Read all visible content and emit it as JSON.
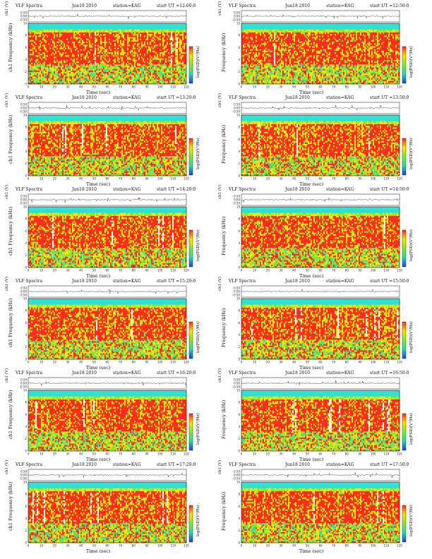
{
  "chart_data": [
    {
      "type": "heatmap",
      "title": "VLF Spectra",
      "date": "Jun18 2010",
      "station": "station=KAG",
      "start": "start UT =12:00:0",
      "ylabel_top": "ch1 (V)",
      "ylabel": "ch1 Frequency (kHz)",
      "xlabel": "Time (sec)",
      "colorbar_label": "log(PSD)(V²/Hz)",
      "xlim": [
        0,
        120
      ],
      "ylim": [
        0,
        10
      ],
      "xticks": [
        0,
        10,
        20,
        30,
        40,
        50,
        60,
        70,
        80,
        90,
        100,
        110,
        120
      ],
      "yticks": [
        0,
        2,
        4,
        6,
        8,
        10
      ],
      "top_yticks": [
        "0.50",
        "0.00",
        "-0.50"
      ]
    },
    {
      "type": "heatmap",
      "title": "VLF Spectra",
      "date": "Jun18 2010",
      "station": "station=KAG",
      "start": "start UT =12:50:0",
      "ylabel_top": "ch1 (V)",
      "ylabel": "Frequency (kHz)",
      "xlabel": "Time (sec)",
      "colorbar_label": "log(PSD)(V²/Hz)",
      "xlim": [
        0,
        120
      ],
      "ylim": [
        0,
        10
      ],
      "xticks": [
        0,
        10,
        20,
        30,
        40,
        50,
        60,
        70,
        80,
        90,
        100,
        110,
        120
      ],
      "yticks": [
        0,
        2,
        4,
        6,
        8,
        10
      ],
      "top_yticks": [
        "0.50",
        "0.00",
        "-0.50"
      ]
    },
    {
      "type": "heatmap",
      "title": "VLF Spectra",
      "date": "Jun18 2010",
      "station": "station=KAG",
      "start": "start UT =13:20:0",
      "ylabel_top": "ch1 (V)",
      "ylabel": "ch1 Frequency (kHz)",
      "xlabel": "Time (sec)",
      "colorbar_label": "log(PSD)(V²/Hz)",
      "xlim": [
        0,
        120
      ],
      "ylim": [
        0,
        10
      ],
      "xticks": [
        0,
        10,
        20,
        30,
        40,
        50,
        60,
        70,
        80,
        90,
        100,
        110,
        120
      ],
      "yticks": [
        0,
        2,
        4,
        6,
        8,
        10
      ],
      "top_yticks": [
        "0.50",
        "0.00",
        "-0.50"
      ]
    },
    {
      "type": "heatmap",
      "title": "VLF Spectra",
      "date": "Jun18 2010",
      "station": "station=KAG",
      "start": "start UT =13:50:0",
      "ylabel_top": "ch1 (V)",
      "ylabel": "Frequency (kHz)",
      "xlabel": "Time (sec)",
      "colorbar_label": "log(PSD)(V²/Hz)",
      "xlim": [
        0,
        120
      ],
      "ylim": [
        0,
        10
      ],
      "xticks": [
        0,
        10,
        20,
        30,
        40,
        50,
        60,
        70,
        80,
        90,
        100,
        110,
        120
      ],
      "yticks": [
        0,
        2,
        4,
        6,
        8,
        10
      ],
      "top_yticks": [
        "0.50",
        "0.00",
        "-0.50"
      ]
    },
    {
      "type": "heatmap",
      "title": "VLF Spectra",
      "date": "Jun18 2010",
      "station": "station=KAG",
      "start": "start UT =14:20:0",
      "ylabel_top": "ch1 (V)",
      "ylabel": "ch1 Frequency (kHz)",
      "xlabel": "Time (sec)",
      "colorbar_label": "log(PSD)(V²/Hz)",
      "xlim": [
        0,
        120
      ],
      "ylim": [
        0,
        10
      ],
      "xticks": [
        0,
        10,
        20,
        30,
        40,
        50,
        60,
        70,
        80,
        90,
        100,
        110,
        120
      ],
      "yticks": [
        0,
        2,
        4,
        6,
        8,
        10
      ],
      "top_yticks": [
        "0.50",
        "0.00",
        "-0.50"
      ]
    },
    {
      "type": "heatmap",
      "title": "VLF Spectra",
      "date": "Jun18 2010",
      "station": "station=KAG",
      "start": "start UT =14:50:0",
      "ylabel_top": "ch1 (V)",
      "ylabel": "Frequency (kHz)",
      "xlabel": "Time (sec)",
      "colorbar_label": "log(PSD)(V²/Hz)",
      "xlim": [
        0,
        120
      ],
      "ylim": [
        0,
        10
      ],
      "xticks": [
        0,
        10,
        20,
        30,
        40,
        50,
        60,
        70,
        80,
        90,
        100,
        110,
        120
      ],
      "yticks": [
        0,
        2,
        4,
        6,
        8,
        10
      ],
      "top_yticks": [
        "0.50",
        "0.00",
        "-0.50"
      ]
    },
    {
      "type": "heatmap",
      "title": "VLF Spectra",
      "date": "Jun18 2010",
      "station": "station=KAG",
      "start": "start UT =15:20:0",
      "ylabel_top": "ch1 (V)",
      "ylabel": "ch1 Frequency (kHz)",
      "xlabel": "Time (sec)",
      "colorbar_label": "log(PSD)(V²/Hz)",
      "xlim": [
        0,
        120
      ],
      "ylim": [
        0,
        10
      ],
      "xticks": [
        0,
        10,
        20,
        30,
        40,
        50,
        60,
        70,
        80,
        90,
        100,
        110,
        120
      ],
      "yticks": [
        0,
        2,
        4,
        6,
        8,
        10
      ],
      "top_yticks": [
        "0.50",
        "0.00",
        "-0.50"
      ]
    },
    {
      "type": "heatmap",
      "title": "VLF Spectra",
      "date": "Jun18 2010",
      "station": "station=KAG",
      "start": "start UT =15:50:0",
      "ylabel_top": "ch1 (V)",
      "ylabel": "Frequency (kHz)",
      "xlabel": "Time (sec)",
      "colorbar_label": "log(PSD)(V²/Hz)",
      "xlim": [
        0,
        120
      ],
      "ylim": [
        0,
        10
      ],
      "xticks": [
        0,
        10,
        20,
        30,
        40,
        50,
        60,
        70,
        80,
        90,
        100,
        110,
        120
      ],
      "yticks": [
        0,
        2,
        4,
        6,
        8,
        10
      ],
      "top_yticks": [
        "0.50",
        "0.00",
        "-0.50"
      ]
    },
    {
      "type": "heatmap",
      "title": "VLF Spectra",
      "date": "Jun18 2010",
      "station": "station=KAG",
      "start": "start UT =16:20:0",
      "ylabel_top": "ch1 (V)",
      "ylabel": "ch1 Frequency (kHz)",
      "xlabel": "Time (sec)",
      "colorbar_label": "log(PSD)(V²/Hz)",
      "xlim": [
        0,
        120
      ],
      "ylim": [
        0,
        10
      ],
      "xticks": [
        0,
        10,
        20,
        30,
        40,
        50,
        60,
        70,
        80,
        90,
        100,
        110,
        120
      ],
      "yticks": [
        0,
        2,
        4,
        6,
        8,
        10
      ],
      "top_yticks": [
        "0.50",
        "0.00",
        "-0.50"
      ]
    },
    {
      "type": "heatmap",
      "title": "VLF Spectra",
      "date": "Jun18 2010",
      "station": "station=KAG",
      "start": "start UT =16:50:0",
      "ylabel_top": "ch1 (V)",
      "ylabel": "Frequency (kHz)",
      "xlabel": "Time (sec)",
      "colorbar_label": "log(PSD)(V²/Hz)",
      "xlim": [
        0,
        120
      ],
      "ylim": [
        0,
        10
      ],
      "xticks": [
        0,
        10,
        20,
        30,
        40,
        50,
        60,
        70,
        80,
        90,
        100,
        110,
        120
      ],
      "yticks": [
        0,
        2,
        4,
        6,
        8,
        10
      ],
      "top_yticks": [
        "0.50",
        "0.00",
        "-0.50"
      ]
    },
    {
      "type": "heatmap",
      "title": "VLF Spectra",
      "date": "Jun18 2010",
      "station": "station=KAG",
      "start": "start UT =17:20:0",
      "ylabel_top": "ch1 (V)",
      "ylabel": "ch1 Frequency (kHz)",
      "xlabel": "Time (sec)",
      "colorbar_label": "log(PSD)(V²/Hz)",
      "xlim": [
        0,
        120
      ],
      "ylim": [
        0,
        10
      ],
      "xticks": [
        0,
        10,
        20,
        30,
        40,
        50,
        60,
        70,
        80,
        90,
        100,
        110,
        120
      ],
      "yticks": [
        0,
        2,
        4,
        6,
        8,
        10
      ],
      "top_yticks": [
        "0.50",
        "0.00",
        "-0.50"
      ]
    },
    {
      "type": "heatmap",
      "title": "VLF Spectra",
      "date": "Jun18 2010",
      "station": "station=KAG",
      "start": "start UT =17:50:0",
      "ylabel_top": "ch1 (V)",
      "ylabel": "Frequency (kHz)",
      "xlabel": "Time (sec)",
      "colorbar_label": "log(PSD)(V²/Hz)",
      "xlim": [
        0,
        120
      ],
      "ylim": [
        0,
        10
      ],
      "xticks": [
        0,
        10,
        20,
        30,
        40,
        50,
        60,
        70,
        80,
        90,
        100,
        110,
        120
      ],
      "yticks": [
        0,
        2,
        4,
        6,
        8,
        10
      ],
      "top_yticks": [
        "0.50",
        "0.00",
        "-0.50"
      ]
    }
  ],
  "colors": {
    "high": "#ff2a1a",
    "upper_mid": "#ffe400",
    "mid": "#7ee83a",
    "low": "#33d6a5",
    "lowest": "#1a3cff",
    "band_top": "#2fe0d0"
  }
}
